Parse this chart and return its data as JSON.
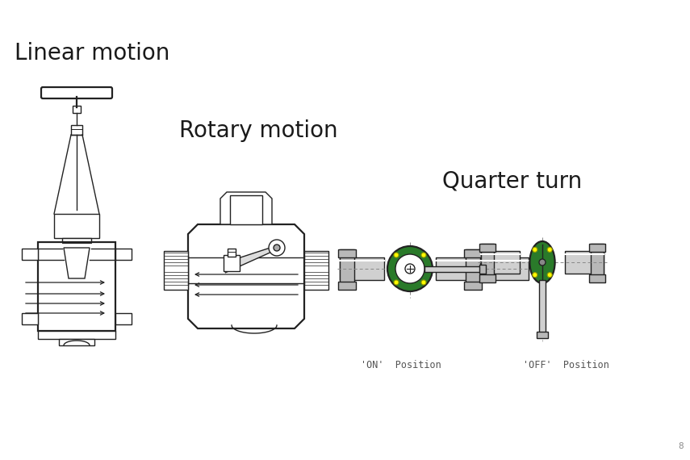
{
  "background_color": "#ffffff",
  "title_linear": "Linear motion",
  "title_rotary": "Rotary motion",
  "title_quarter": "Quarter turn",
  "label_on": "'ON'  Position",
  "label_off": "'OFF'  Position",
  "page_number": "8",
  "text_color": "#1a1a1a",
  "line_color": "#222222",
  "gray_body": "#b8b8b8",
  "gray_light": "#d0d0d0",
  "green_fill": "#2a7a2a",
  "yellow_dot": "#ffff00",
  "lw": 1.0,
  "lw2": 1.6,
  "figsize": [
    8.55,
    5.7
  ],
  "dpi": 100
}
